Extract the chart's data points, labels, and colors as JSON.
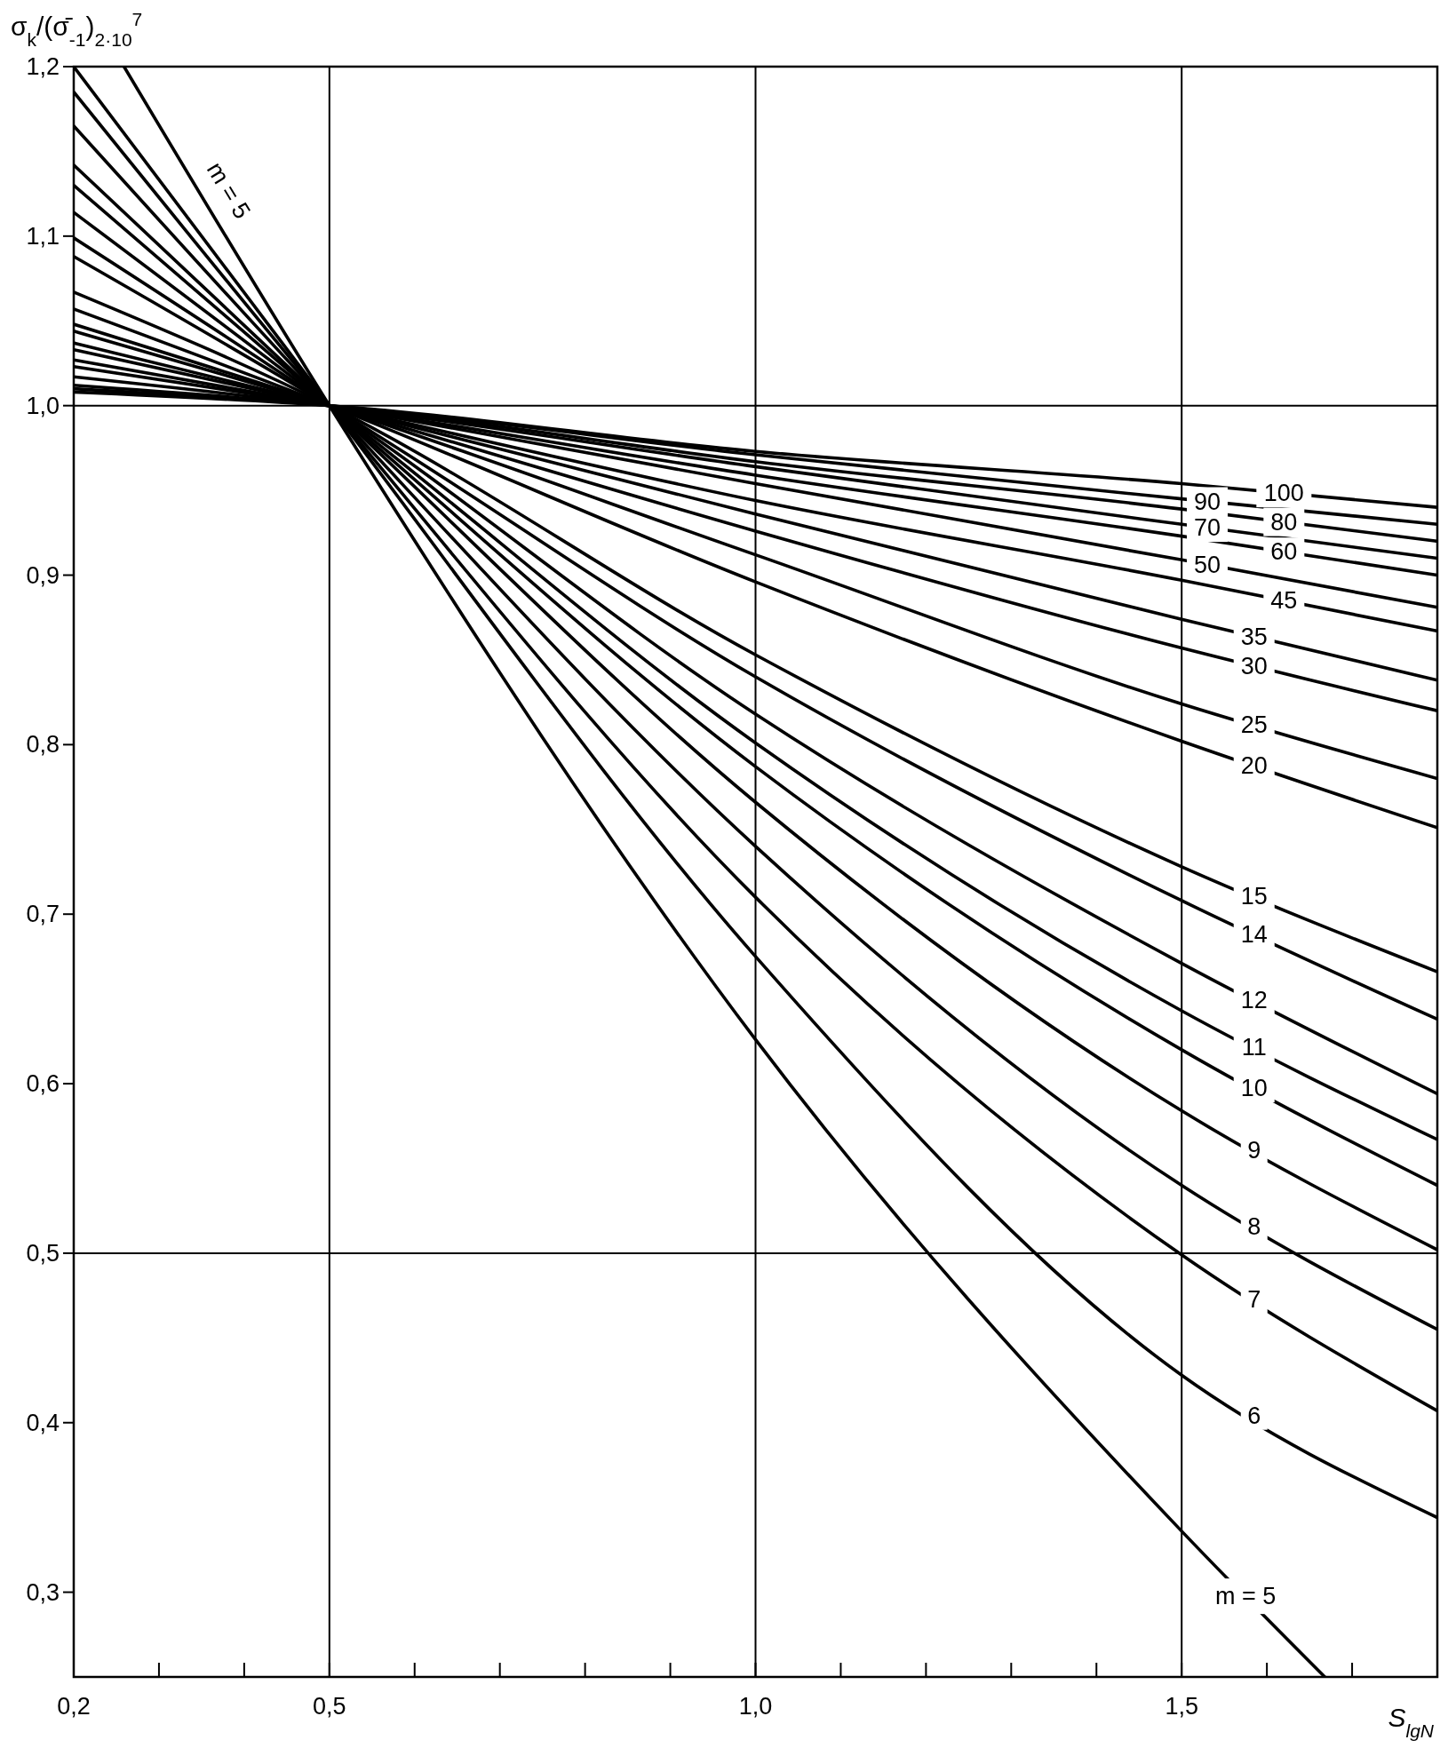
{
  "chart_data": {
    "type": "line",
    "xlabel": "S$_{lgN}$",
    "ylabel": "σ$_{k}$/(σ̄$_{-1}$)$_{2·10}$$^{7}$",
    "xlim": [
      0.2,
      1.8
    ],
    "ylim": [
      0.25,
      1.2
    ],
    "xticks": [
      {
        "value": 0.2,
        "label": "0,2"
      },
      {
        "value": 0.3,
        "label": null
      },
      {
        "value": 0.4,
        "label": null
      },
      {
        "value": 0.5,
        "label": "0,5"
      },
      {
        "value": 0.6,
        "label": null
      },
      {
        "value": 0.7,
        "label": null
      },
      {
        "value": 0.8,
        "label": null
      },
      {
        "value": 0.9,
        "label": null
      },
      {
        "value": 1.0,
        "label": "1,0"
      },
      {
        "value": 1.1,
        "label": null
      },
      {
        "value": 1.2,
        "label": null
      },
      {
        "value": 1.3,
        "label": null
      },
      {
        "value": 1.4,
        "label": null
      },
      {
        "value": 1.5,
        "label": "1,5"
      },
      {
        "value": 1.6,
        "label": null
      },
      {
        "value": 1.7,
        "label": null
      }
    ],
    "yticks": [
      {
        "value": 0.3,
        "label": "0,3"
      },
      {
        "value": 0.4,
        "label": "0,4"
      },
      {
        "value": 0.5,
        "label": "0,5"
      },
      {
        "value": 0.6,
        "label": "0,6"
      },
      {
        "value": 0.7,
        "label": "0,7"
      },
      {
        "value": 0.8,
        "label": "0,8"
      },
      {
        "value": 0.9,
        "label": "0,9"
      },
      {
        "value": 1.0,
        "label": "1,0"
      },
      {
        "value": 1.1,
        "label": "1,1"
      },
      {
        "value": 1.2,
        "label": "1,2"
      }
    ],
    "ref_lines": [
      {
        "axis": "x",
        "value": 0.5,
        "color": "#000000"
      },
      {
        "axis": "x",
        "value": 1.0,
        "color": "#000000"
      },
      {
        "axis": "x",
        "value": 1.5,
        "color": "#000000"
      },
      {
        "axis": "y",
        "value": 0.5,
        "color": "#000000"
      },
      {
        "axis": "y",
        "value": 1.0,
        "color": "#000000"
      }
    ],
    "line_style": "solid",
    "marker": "none",
    "x": [
      0.2,
      0.5,
      1.0,
      1.5,
      1.8
    ],
    "series": [
      {
        "name": "m = 5",
        "color": "#000000",
        "x": [
          0.259,
          0.5,
          1.0,
          1.5,
          1.668
        ],
        "values": [
          1.2,
          1,
          0.626,
          0.336,
          0.25
        ]
      },
      {
        "name": "6",
        "color": "#000000",
        "values": [
          1.2,
          1,
          0.675,
          0.428,
          0.344
        ]
      },
      {
        "name": "7",
        "color": "#000000",
        "values": [
          1.185,
          1,
          0.71,
          0.499,
          0.407
        ]
      },
      {
        "name": "8",
        "color": "#000000",
        "values": [
          1.165,
          1,
          0.74,
          0.54,
          0.455
        ]
      },
      {
        "name": "9",
        "color": "#000000",
        "values": [
          1.142,
          1,
          0.766,
          0.584,
          0.502
        ]
      },
      {
        "name": "10",
        "color": "#000000",
        "values": [
          1.13,
          1,
          0.787,
          0.62,
          0.54
        ]
      },
      {
        "name": "11",
        "color": "#000000",
        "values": [
          1.114,
          1,
          0.801,
          0.643,
          0.567
        ]
      },
      {
        "name": "12",
        "color": "#000000",
        "values": [
          1.099,
          1,
          0.818,
          0.671,
          0.594
        ]
      },
      {
        "name": "14",
        "color": "#000000",
        "values": [
          1.088,
          1,
          0.84,
          0.708,
          0.638
        ]
      },
      {
        "name": "15",
        "color": "#000000",
        "values": [
          1.067,
          1,
          0.853,
          0.728,
          0.666
        ]
      },
      {
        "name": "20",
        "color": "#000000",
        "values": [
          1.057,
          1,
          0.896,
          0.802,
          0.751
        ]
      },
      {
        "name": "25",
        "color": "#000000",
        "values": [
          1.048,
          1,
          0.912,
          0.824,
          0.78
        ]
      },
      {
        "name": "30",
        "color": "#000000",
        "values": [
          1.044,
          1,
          0.926,
          0.857,
          0.82
        ]
      },
      {
        "name": "35",
        "color": "#000000",
        "values": [
          1.037,
          1,
          0.936,
          0.874,
          0.838
        ]
      },
      {
        "name": "45",
        "color": "#000000",
        "values": [
          1.033,
          1,
          0.944,
          0.897,
          0.867
        ]
      },
      {
        "name": "50",
        "color": "#000000",
        "values": [
          1.027,
          1,
          0.954,
          0.909,
          0.881
        ]
      },
      {
        "name": "60",
        "color": "#000000",
        "values": [
          1.023,
          1,
          0.959,
          0.923,
          0.9
        ]
      },
      {
        "name": "70",
        "color": "#000000",
        "values": [
          1.017,
          1,
          0.964,
          0.93,
          0.91
        ]
      },
      {
        "name": "80",
        "color": "#000000",
        "values": [
          1.012,
          1,
          0.967,
          0.939,
          0.92
        ]
      },
      {
        "name": "90",
        "color": "#000000",
        "values": [
          1.01,
          1,
          0.971,
          0.945,
          0.93
        ]
      },
      {
        "name": "100",
        "color": "#000000",
        "values": [
          1.008,
          1,
          0.973,
          0.954,
          0.94
        ]
      }
    ]
  }
}
